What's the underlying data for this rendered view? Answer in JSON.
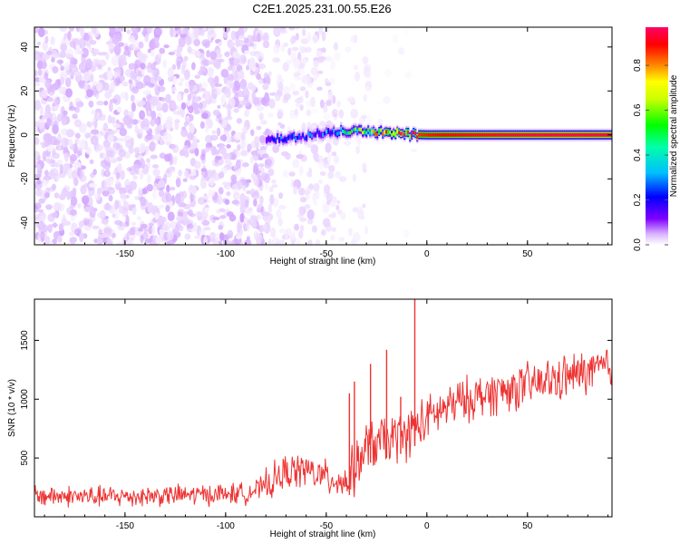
{
  "title": "C2E1.2025.231.00.55.E26",
  "chart_data": [
    {
      "type": "heatmap",
      "xlabel": "Height of straight line (km)",
      "ylabel": "Frequency (Hz)",
      "xlim": [
        -195,
        92
      ],
      "ylim": [
        -50,
        49
      ],
      "xticks": [
        -150,
        -100,
        -50,
        0,
        50
      ],
      "yticks": [
        -40,
        -20,
        0,
        20,
        40
      ],
      "colorbar": {
        "label": "Normalized spectral amplitude",
        "range": [
          0,
          0.97
        ],
        "ticks": [
          0.0,
          0.2,
          0.4,
          0.6,
          0.8
        ],
        "tick_labels": [
          "0.0",
          "0.2",
          "0.4",
          "0.6",
          "0.8"
        ],
        "colormap": [
          "#ffffff",
          "#d9b3ff",
          "#8000ff",
          "#0000ff",
          "#00ffff",
          "#00ff00",
          "#ffff00",
          "#ff8000",
          "#ff0000",
          "#ff0066"
        ]
      },
      "regions": [
        {
          "x": [
            -195,
            -78
          ],
          "freq": [
            -50,
            49
          ],
          "amplitude": [
            0.02,
            0.12
          ],
          "density": 0.55
        },
        {
          "x": [
            -78,
            -44
          ],
          "freq": [
            -50,
            49
          ],
          "amplitude": [
            0.01,
            0.08
          ],
          "density": 0.3
        },
        {
          "x": [
            -44,
            -28
          ],
          "freq": [
            -50,
            49
          ],
          "amplitude": [
            0.01,
            0.05
          ],
          "density": 0.12
        },
        {
          "x": [
            -28,
            -5
          ],
          "freq": [
            -50,
            49
          ],
          "amplitude": [
            0.0,
            0.03
          ],
          "density": 0.02
        }
      ],
      "signal_band": [
        {
          "x": -80,
          "freq": -2.0,
          "amplitude": 0.3
        },
        {
          "x": -72,
          "freq": -1.5,
          "amplitude": 0.35
        },
        {
          "x": -62,
          "freq": -0.5,
          "amplitude": 0.3
        },
        {
          "x": -50,
          "freq": 1.5,
          "amplitude": 0.35
        },
        {
          "x": -40,
          "freq": 2.0,
          "amplitude": 0.45
        },
        {
          "x": -30,
          "freq": 1.5,
          "amplitude": 0.55
        },
        {
          "x": -20,
          "freq": 0.8,
          "amplitude": 0.75
        },
        {
          "x": -10,
          "freq": 0.2,
          "amplitude": 0.8
        },
        {
          "x": 0,
          "freq": 0.0,
          "amplitude": 0.85
        },
        {
          "x": 30,
          "freq": 0.0,
          "amplitude": 0.9
        },
        {
          "x": 60,
          "freq": 0.0,
          "amplitude": 0.92
        },
        {
          "x": 92,
          "freq": 0.0,
          "amplitude": 0.92
        }
      ]
    },
    {
      "type": "line",
      "xlabel": "Height of straight line (km)",
      "ylabel": "SNR (10 * v/v)",
      "xlim": [
        -195,
        92
      ],
      "ylim": [
        0,
        1850
      ],
      "xticks": [
        -150,
        -100,
        -50,
        0,
        50
      ],
      "yticks": [
        500,
        1000,
        1500
      ],
      "series": [
        {
          "color": "#ee3333",
          "points": [
            {
              "x": -195,
              "y": 180
            },
            {
              "x": -160,
              "y": 170
            },
            {
              "x": -120,
              "y": 185
            },
            {
              "x": -90,
              "y": 200
            },
            {
              "x": -80,
              "y": 260
            },
            {
              "x": -70,
              "y": 380
            },
            {
              "x": -60,
              "y": 400
            },
            {
              "x": -50,
              "y": 330
            },
            {
              "x": -40,
              "y": 300
            },
            {
              "x": -35,
              "y": 420
            },
            {
              "x": -30,
              "y": 600
            },
            {
              "x": -20,
              "y": 650
            },
            {
              "x": -10,
              "y": 700
            },
            {
              "x": 0,
              "y": 830
            },
            {
              "x": 10,
              "y": 930
            },
            {
              "x": 20,
              "y": 1000
            },
            {
              "x": 40,
              "y": 1080
            },
            {
              "x": 60,
              "y": 1150
            },
            {
              "x": 80,
              "y": 1230
            },
            {
              "x": 92,
              "y": 1280
            }
          ],
          "spikes": [
            {
              "x": -38.5,
              "y": 1050
            },
            {
              "x": -36,
              "y": 1150
            },
            {
              "x": -28,
              "y": 1300
            },
            {
              "x": -20,
              "y": 1420
            },
            {
              "x": -13,
              "y": 1020
            },
            {
              "x": -6,
              "y": 1850
            },
            {
              "x": -3,
              "y": 700
            }
          ]
        }
      ]
    }
  ]
}
